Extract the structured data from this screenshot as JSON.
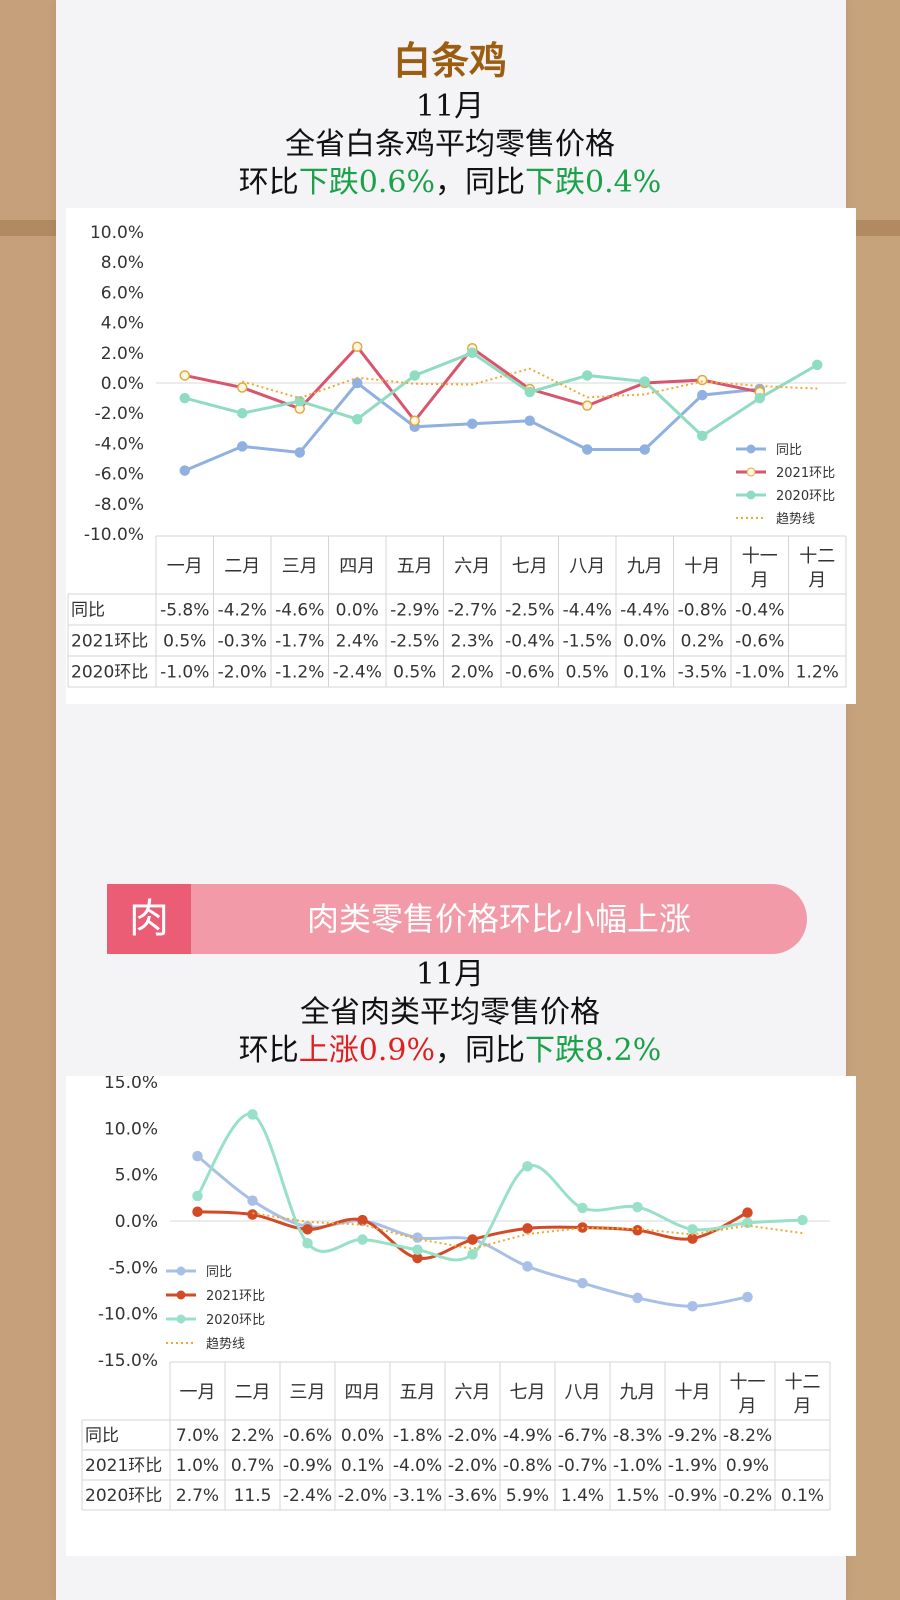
{
  "section1": {
    "title": "白条鸡",
    "month": "11月",
    "subtitle": "全省白条鸡平均零售价格",
    "line_prefix": "环比",
    "mom_dir": "下跌",
    "mom_val": "0.6%",
    "sep": "，同比",
    "yoy_dir": "下跌",
    "yoy_val": "0.4%"
  },
  "section2": {
    "banner_char": "肉",
    "banner_text": "肉类零售价格环比小幅上涨",
    "month": "11月",
    "subtitle": "全省肉类平均零售价格",
    "line_prefix": "环比",
    "mom_dir": "上涨",
    "mom_val": "0.9%",
    "sep": "，同比",
    "yoy_dir": "下跌",
    "yoy_val": "8.2%"
  },
  "chart_data": [
    {
      "type": "line",
      "categories": [
        "一月",
        "二月",
        "三月",
        "四月",
        "五月",
        "六月",
        "七月",
        "八月",
        "九月",
        "十月",
        "十一月",
        "十二月"
      ],
      "ylim": [
        -10,
        10
      ],
      "yticks": [
        "10.0%",
        "8.0%",
        "6.0%",
        "4.0%",
        "2.0%",
        "0.0%",
        "-2.0%",
        "-4.0%",
        "-6.0%",
        "-8.0%",
        "-10.0%"
      ],
      "legend_position": "bottom-right",
      "series": [
        {
          "name": "同比",
          "color": "#8fb0e0",
          "values": [
            -5.8,
            -4.2,
            -4.6,
            0.0,
            -2.9,
            -2.7,
            -2.5,
            -4.4,
            -4.4,
            -0.8,
            -0.4,
            null
          ],
          "labels": [
            "-5.8%",
            "-4.2%",
            "-4.6%",
            "0.0%",
            "-2.9%",
            "-2.7%",
            "-2.5%",
            "-4.4%",
            "-4.4%",
            "-0.8%",
            "-0.4%",
            ""
          ]
        },
        {
          "name": "2021环比",
          "color": "#d9546c",
          "values": [
            0.5,
            -0.3,
            -1.7,
            2.4,
            -2.5,
            2.3,
            -0.4,
            -1.5,
            0.0,
            0.2,
            -0.6,
            null
          ],
          "labels": [
            "0.5%",
            "-0.3%",
            "-1.7%",
            "2.4%",
            "-2.5%",
            "2.3%",
            "-0.4%",
            "-1.5%",
            "0.0%",
            "0.2%",
            "-0.6%",
            ""
          ]
        },
        {
          "name": "2020环比",
          "color": "#8fdcc0",
          "values": [
            -1.0,
            -2.0,
            -1.2,
            -2.4,
            0.5,
            2.0,
            -0.6,
            0.5,
            0.1,
            -3.5,
            -1.0,
            1.2
          ],
          "labels": [
            "-1.0%",
            "-2.0%",
            "-1.2%",
            "-2.4%",
            "0.5%",
            "2.0%",
            "-0.6%",
            "0.5%",
            "0.1%",
            "-3.5%",
            "-1.0%",
            "1.2%"
          ]
        },
        {
          "name": "趋势线",
          "color": "#f0a830"
        }
      ]
    },
    {
      "type": "line",
      "categories": [
        "一月",
        "二月",
        "三月",
        "四月",
        "五月",
        "六月",
        "七月",
        "八月",
        "九月",
        "十月",
        "十一月",
        "十二月"
      ],
      "ylim": [
        -15,
        15
      ],
      "yticks": [
        "15.0%",
        "10.0%",
        "5.0%",
        "0.0%",
        "-5.0%",
        "-10.0%",
        "-15.0%"
      ],
      "legend_position": "left",
      "series": [
        {
          "name": "同比",
          "color": "#a8c0e8",
          "values": [
            7.0,
            2.2,
            -0.6,
            0.0,
            -1.8,
            -2.0,
            -4.9,
            -6.7,
            -8.3,
            -9.2,
            -8.2,
            null
          ],
          "labels": [
            "7.0%",
            "2.2%",
            "-0.6%",
            "0.0%",
            "-1.8%",
            "-2.0%",
            "-4.9%",
            "-6.7%",
            "-8.3%",
            "-9.2%",
            "-8.2%",
            ""
          ]
        },
        {
          "name": "2021环比",
          "color": "#d24a26",
          "values": [
            1.0,
            0.7,
            -0.9,
            0.1,
            -4.0,
            -2.0,
            -0.8,
            -0.7,
            -1.0,
            -1.9,
            0.9,
            null
          ],
          "labels": [
            "1.0%",
            "0.7%",
            "-0.9%",
            "0.1%",
            "-4.0%",
            "-2.0%",
            "-0.8%",
            "-0.7%",
            "-1.0%",
            "-1.9%",
            "0.9%",
            ""
          ]
        },
        {
          "name": "2020环比",
          "color": "#98e0c8",
          "values": [
            2.7,
            11.5,
            -2.4,
            -2.0,
            -3.1,
            -3.6,
            5.9,
            1.4,
            1.5,
            -0.9,
            -0.2,
            0.1
          ],
          "labels": [
            "2.7%",
            "11.5",
            "-2.4%",
            "-2.0%",
            "-3.1%",
            "-3.6%",
            "5.9%",
            "1.4%",
            "1.5%",
            "-0.9%",
            "-0.2%",
            "0.1%"
          ]
        },
        {
          "name": "趋势线",
          "color": "#f0a830"
        }
      ]
    }
  ]
}
